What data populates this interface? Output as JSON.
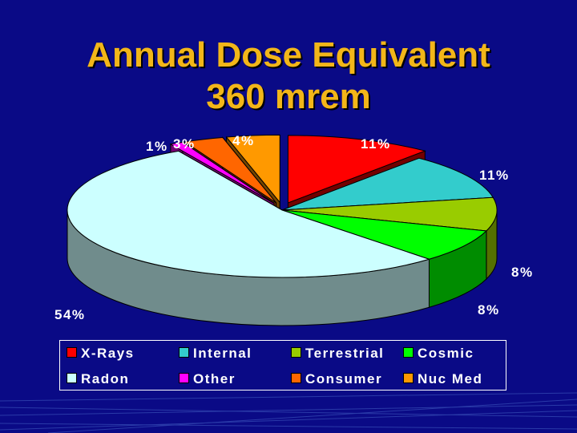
{
  "title": {
    "line1": "Annual Dose Equivalent",
    "line2": "360 mrem"
  },
  "chart_data": {
    "type": "pie",
    "three_d": true,
    "title": "Annual Dose Equivalent 360 mrem",
    "legend_position": "bottom",
    "slices": [
      {
        "name": "X-Rays",
        "value": 11,
        "label": "11%",
        "color": "#ff0000",
        "exploded": true
      },
      {
        "name": "Internal",
        "value": 11,
        "label": "11%",
        "color": "#33cccc",
        "exploded": false
      },
      {
        "name": "Terrestrial",
        "value": 8,
        "label": "8%",
        "color": "#99cc00",
        "exploded": false
      },
      {
        "name": "Cosmic",
        "value": 8,
        "label": "8%",
        "color": "#00ff00",
        "exploded": false
      },
      {
        "name": "Radon",
        "value": 54,
        "label": "54%",
        "color": "#ccffff",
        "exploded": false
      },
      {
        "name": "Other",
        "value": 1,
        "label": "1%",
        "color": "#ff00ff",
        "exploded": true
      },
      {
        "name": "Consumer",
        "value": 3,
        "label": "3%",
        "color": "#ff6600",
        "exploded": true
      },
      {
        "name": "Nuc Med",
        "value": 4,
        "label": "4%",
        "color": "#ff9900",
        "exploded": true
      }
    ]
  },
  "legend": {
    "row1": [
      {
        "label": "X-Rays",
        "color": "#ff0000"
      },
      {
        "label": "Internal",
        "color": "#33cccc"
      },
      {
        "label": "Terrestrial",
        "color": "#99cc00"
      },
      {
        "label": "Cosmic",
        "color": "#00ff00"
      }
    ],
    "row2": [
      {
        "label": "Radon",
        "color": "#ccffff"
      },
      {
        "label": "Other",
        "color": "#ff00ff"
      },
      {
        "label": "Consumer",
        "color": "#ff6600"
      },
      {
        "label": "Nuc Med",
        "color": "#ff9900"
      }
    ]
  }
}
